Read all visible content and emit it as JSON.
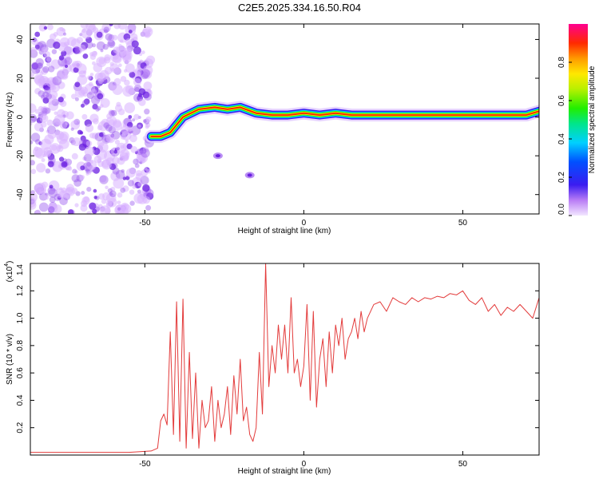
{
  "figure": {
    "title": "C2E5.2025.334.16.50.R04"
  },
  "colors": {
    "line": "#e33b3b",
    "axis": "#000000",
    "noise_light": "#d9b3ff",
    "noise_dark": "#6a1fe0"
  },
  "chart_data": [
    {
      "type": "heatmap",
      "name": "spectrogram",
      "xlabel": "Height of straight line (km)",
      "ylabel": "Frequency (Hz)",
      "xlim": [
        -86,
        74
      ],
      "ylim": [
        -50,
        48
      ],
      "xticks": [
        -50,
        0,
        50
      ],
      "yticks": [
        -40,
        -20,
        0,
        20,
        40
      ],
      "noise_region_x": [
        -86,
        -48
      ],
      "ridge": {
        "description_points_x": [
          -48,
          -45,
          -42,
          -38,
          -33,
          -28,
          -24,
          -20,
          -15,
          -10,
          -5,
          0,
          5,
          10,
          15,
          20,
          30,
          40,
          50,
          60,
          70,
          74
        ],
        "description_points_y": [
          -10,
          -10,
          -8,
          0,
          4,
          5,
          4,
          5,
          2,
          1,
          1,
          2,
          1,
          2,
          1,
          1,
          1,
          1,
          1,
          1,
          1,
          3
        ]
      },
      "blobs": [
        {
          "x": -27,
          "y": -20
        },
        {
          "x": -17,
          "y": -30
        }
      ],
      "colorbar": {
        "label": "Normalized spectral amplitude",
        "range": [
          0,
          1
        ],
        "ticks": [
          "0.0",
          "0.2",
          "0.4",
          "0.6",
          "0.8"
        ]
      }
    },
    {
      "type": "line",
      "name": "snr",
      "xlabel": "Height of straight line (km)",
      "ylabel": "SNR (10 * v/v)",
      "multiplier_label": "(x10",
      "multiplier_exp": "4",
      "xlim": [
        -86,
        74
      ],
      "ylim": [
        0,
        1.4
      ],
      "xticks": [
        -50,
        0,
        50
      ],
      "yticks": [
        "0.2",
        "0.4",
        "0.6",
        "0.8",
        "1.0",
        "1.2",
        "1.4"
      ],
      "series": [
        {
          "name": "SNR",
          "x": [
            -86,
            -70,
            -55,
            -48,
            -46,
            -45,
            -44,
            -43,
            -42,
            -41,
            -40,
            -39,
            -38,
            -37,
            -36,
            -35,
            -34,
            -33,
            -32,
            -31,
            -30,
            -29,
            -28,
            -27,
            -26,
            -25,
            -24,
            -23,
            -22,
            -21,
            -20,
            -19,
            -18,
            -17,
            -16,
            -15,
            -14,
            -13,
            -12,
            -11,
            -10,
            -9,
            -8,
            -7,
            -6,
            -5,
            -4,
            -3,
            -2,
            -1,
            0,
            1,
            2,
            3,
            4,
            5,
            6,
            7,
            8,
            9,
            10,
            11,
            12,
            13,
            14,
            15,
            16,
            17,
            18,
            19,
            20,
            22,
            24,
            26,
            28,
            30,
            32,
            34,
            36,
            38,
            40,
            42,
            44,
            46,
            48,
            50,
            52,
            54,
            56,
            58,
            60,
            62,
            64,
            66,
            68,
            70,
            72,
            74
          ],
          "values": [
            0.02,
            0.02,
            0.02,
            0.03,
            0.05,
            0.25,
            0.3,
            0.22,
            0.9,
            0.15,
            1.12,
            0.1,
            1.14,
            0.05,
            0.75,
            0.12,
            0.6,
            0.05,
            0.4,
            0.2,
            0.25,
            0.5,
            0.1,
            0.4,
            0.2,
            0.3,
            0.5,
            0.15,
            0.58,
            0.3,
            0.7,
            0.25,
            0.35,
            0.15,
            0.1,
            0.2,
            0.75,
            0.3,
            1.4,
            0.5,
            0.8,
            0.6,
            0.95,
            0.7,
            0.95,
            0.6,
            1.15,
            0.6,
            0.7,
            0.5,
            0.65,
            1.1,
            0.4,
            1.05,
            0.35,
            0.7,
            0.85,
            0.5,
            0.9,
            0.6,
            0.95,
            0.8,
            1.0,
            0.7,
            0.85,
            0.9,
            1.0,
            0.85,
            1.05,
            0.9,
            1.0,
            1.1,
            1.12,
            1.05,
            1.15,
            1.12,
            1.1,
            1.15,
            1.12,
            1.15,
            1.14,
            1.16,
            1.15,
            1.18,
            1.17,
            1.2,
            1.13,
            1.1,
            1.15,
            1.05,
            1.1,
            1.02,
            1.08,
            1.05,
            1.1,
            1.05,
            1.0,
            1.15
          ]
        }
      ]
    }
  ]
}
